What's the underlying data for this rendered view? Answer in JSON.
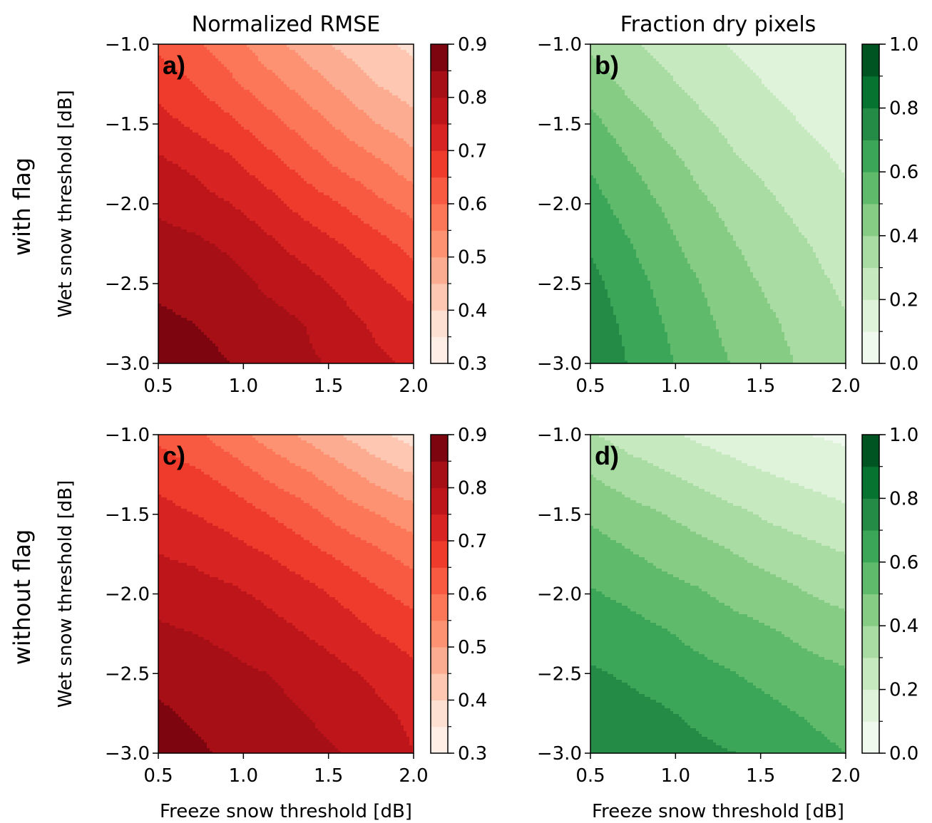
{
  "figure": {
    "row_labels": [
      "with flag",
      "without flag"
    ]
  },
  "chart_data": [
    {
      "type": "heatmap",
      "panel": "a)",
      "title": "Normalized RMSE",
      "xlabel": "",
      "ylabel": "Wet snow threshold [dB]",
      "xlim": [
        0.5,
        2.0
      ],
      "ylim": [
        -3.0,
        -1.0
      ],
      "xticks": [
        "0.5",
        "1.0",
        "1.5",
        "2.0"
      ],
      "yticks": [
        "−1.0",
        "−1.5",
        "−2.0",
        "−2.5",
        "−3.0"
      ],
      "colormap": "Reds",
      "colorbar": {
        "levels": [
          0.3,
          0.35,
          0.4,
          0.45,
          0.5,
          0.55,
          0.6,
          0.65,
          0.7,
          0.75,
          0.8,
          0.85,
          0.9
        ],
        "ticks": [
          "0.9",
          "0.8",
          "0.7",
          "0.6",
          "0.5",
          "0.4",
          "0.3"
        ]
      },
      "z": [
        [
          0.64,
          0.61,
          0.57,
          0.52,
          0.48,
          0.44,
          0.41,
          0.39
        ],
        [
          0.68,
          0.65,
          0.61,
          0.57,
          0.53,
          0.49,
          0.45,
          0.42
        ],
        [
          0.72,
          0.69,
          0.66,
          0.62,
          0.58,
          0.54,
          0.5,
          0.47
        ],
        [
          0.76,
          0.74,
          0.71,
          0.67,
          0.63,
          0.59,
          0.56,
          0.52
        ],
        [
          0.79,
          0.77,
          0.75,
          0.72,
          0.68,
          0.65,
          0.61,
          0.58
        ],
        [
          0.82,
          0.81,
          0.79,
          0.76,
          0.73,
          0.7,
          0.67,
          0.63
        ],
        [
          0.84,
          0.83,
          0.82,
          0.79,
          0.77,
          0.74,
          0.71,
          0.68
        ],
        [
          0.86,
          0.85,
          0.84,
          0.82,
          0.8,
          0.77,
          0.74,
          0.72
        ],
        [
          0.88,
          0.86,
          0.85,
          0.84,
          0.81,
          0.79,
          0.76,
          0.74
        ]
      ],
      "grid_x": [
        0.5,
        0.714,
        0.929,
        1.143,
        1.357,
        1.571,
        1.786,
        2.0
      ],
      "grid_y": [
        -1.0,
        -1.25,
        -1.5,
        -1.75,
        -2.0,
        -2.25,
        -2.5,
        -2.75,
        -3.0
      ]
    },
    {
      "type": "heatmap",
      "panel": "b)",
      "title": "Fraction dry pixels",
      "xlabel": "",
      "ylabel": "",
      "xlim": [
        0.5,
        2.0
      ],
      "ylim": [
        -3.0,
        -1.0
      ],
      "xticks": [
        "0.5",
        "1.0",
        "1.5",
        "2.0"
      ],
      "yticks": [
        "−1.0",
        "−1.5",
        "−2.0",
        "−2.5",
        "−3.0"
      ],
      "colormap": "Greens",
      "colorbar": {
        "levels": [
          0.0,
          0.1,
          0.2,
          0.3,
          0.4,
          0.5,
          0.6,
          0.7,
          0.8,
          0.9,
          1.0
        ],
        "ticks": [
          "1.0",
          "0.8",
          "0.6",
          "0.4",
          "0.2",
          "0.0"
        ]
      },
      "z": [
        [
          0.38,
          0.32,
          0.27,
          0.23,
          0.19,
          0.16,
          0.13,
          0.1
        ],
        [
          0.46,
          0.38,
          0.32,
          0.27,
          0.23,
          0.19,
          0.16,
          0.13
        ],
        [
          0.53,
          0.45,
          0.38,
          0.32,
          0.27,
          0.23,
          0.19,
          0.16
        ],
        [
          0.59,
          0.51,
          0.44,
          0.37,
          0.31,
          0.27,
          0.23,
          0.19
        ],
        [
          0.64,
          0.56,
          0.49,
          0.42,
          0.36,
          0.31,
          0.26,
          0.22
        ],
        [
          0.69,
          0.61,
          0.53,
          0.46,
          0.4,
          0.35,
          0.3,
          0.25
        ],
        [
          0.73,
          0.65,
          0.57,
          0.5,
          0.43,
          0.38,
          0.33,
          0.28
        ],
        [
          0.76,
          0.68,
          0.6,
          0.53,
          0.46,
          0.41,
          0.36,
          0.31
        ],
        [
          0.78,
          0.7,
          0.62,
          0.55,
          0.49,
          0.43,
          0.38,
          0.33
        ]
      ],
      "grid_x": [
        0.5,
        0.714,
        0.929,
        1.143,
        1.357,
        1.571,
        1.786,
        2.0
      ],
      "grid_y": [
        -1.0,
        -1.25,
        -1.5,
        -1.75,
        -2.0,
        -2.25,
        -2.5,
        -2.75,
        -3.0
      ]
    },
    {
      "type": "heatmap",
      "panel": "c)",
      "title": "",
      "xlabel": "Freeze snow threshold [dB]",
      "ylabel": "Wet snow threshold [dB]",
      "xlim": [
        0.5,
        2.0
      ],
      "ylim": [
        -3.0,
        -1.0
      ],
      "xticks": [
        "0.5",
        "1.0",
        "1.5",
        "2.0"
      ],
      "yticks": [
        "−1.0",
        "−1.5",
        "−2.0",
        "−2.5",
        "−3.0"
      ],
      "colormap": "Reds",
      "colorbar": {
        "levels": [
          0.3,
          0.35,
          0.4,
          0.45,
          0.5,
          0.55,
          0.6,
          0.65,
          0.7,
          0.75,
          0.8,
          0.85,
          0.9
        ],
        "ticks": [
          "0.9",
          "0.8",
          "0.7",
          "0.6",
          "0.5",
          "0.4",
          "0.3"
        ]
      },
      "z": [
        [
          0.64,
          0.61,
          0.57,
          0.53,
          0.49,
          0.45,
          0.41,
          0.38
        ],
        [
          0.68,
          0.66,
          0.63,
          0.59,
          0.56,
          0.52,
          0.48,
          0.45
        ],
        [
          0.72,
          0.7,
          0.68,
          0.65,
          0.62,
          0.58,
          0.55,
          0.52
        ],
        [
          0.75,
          0.74,
          0.72,
          0.7,
          0.67,
          0.64,
          0.61,
          0.58
        ],
        [
          0.78,
          0.77,
          0.76,
          0.74,
          0.72,
          0.69,
          0.66,
          0.63
        ],
        [
          0.81,
          0.8,
          0.79,
          0.77,
          0.75,
          0.73,
          0.7,
          0.68
        ],
        [
          0.83,
          0.82,
          0.81,
          0.8,
          0.78,
          0.76,
          0.74,
          0.71
        ],
        [
          0.86,
          0.84,
          0.83,
          0.82,
          0.8,
          0.78,
          0.76,
          0.74
        ],
        [
          0.89,
          0.86,
          0.84,
          0.83,
          0.82,
          0.8,
          0.78,
          0.75
        ]
      ],
      "grid_x": [
        0.5,
        0.714,
        0.929,
        1.143,
        1.357,
        1.571,
        1.786,
        2.0
      ],
      "grid_y": [
        -1.0,
        -1.25,
        -1.5,
        -1.75,
        -2.0,
        -2.25,
        -2.5,
        -2.75,
        -3.0
      ]
    },
    {
      "type": "heatmap",
      "panel": "d)",
      "title": "",
      "xlabel": "Freeze snow threshold [dB]",
      "ylabel": "",
      "xlim": [
        0.5,
        2.0
      ],
      "ylim": [
        -3.0,
        -1.0
      ],
      "xticks": [
        "0.5",
        "1.0",
        "1.5",
        "2.0"
      ],
      "yticks": [
        "−1.0",
        "−1.5",
        "−2.0",
        "−2.5",
        "−3.0"
      ],
      "colormap": "Greens",
      "colorbar": {
        "levels": [
          0.0,
          0.1,
          0.2,
          0.3,
          0.4,
          0.5,
          0.6,
          0.7,
          0.8,
          0.9,
          1.0
        ],
        "ticks": [
          "1.0",
          "0.8",
          "0.6",
          "0.4",
          "0.2",
          "0.0"
        ]
      },
      "z": [
        [
          0.31,
          0.26,
          0.22,
          0.18,
          0.15,
          0.12,
          0.1,
          0.08
        ],
        [
          0.4,
          0.35,
          0.31,
          0.27,
          0.23,
          0.2,
          0.17,
          0.15
        ],
        [
          0.48,
          0.44,
          0.4,
          0.36,
          0.32,
          0.28,
          0.25,
          0.22
        ],
        [
          0.55,
          0.51,
          0.47,
          0.44,
          0.4,
          0.36,
          0.33,
          0.3
        ],
        [
          0.61,
          0.58,
          0.54,
          0.51,
          0.47,
          0.44,
          0.4,
          0.37
        ],
        [
          0.67,
          0.64,
          0.61,
          0.57,
          0.54,
          0.51,
          0.47,
          0.44
        ],
        [
          0.71,
          0.69,
          0.66,
          0.63,
          0.6,
          0.57,
          0.54,
          0.51
        ],
        [
          0.74,
          0.73,
          0.71,
          0.68,
          0.65,
          0.62,
          0.59,
          0.56
        ],
        [
          0.77,
          0.76,
          0.74,
          0.72,
          0.7,
          0.67,
          0.63,
          0.6
        ]
      ],
      "grid_x": [
        0.5,
        0.714,
        0.929,
        1.143,
        1.357,
        1.571,
        1.786,
        2.0
      ],
      "grid_y": [
        -1.0,
        -1.25,
        -1.5,
        -1.75,
        -2.0,
        -2.25,
        -2.5,
        -2.75,
        -3.0
      ]
    }
  ]
}
